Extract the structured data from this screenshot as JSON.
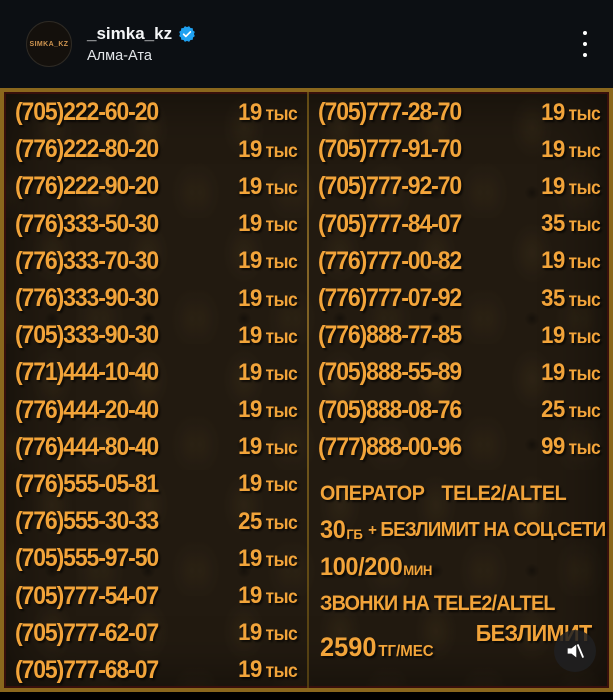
{
  "header": {
    "avatar_text": "SIMKA_KZ",
    "username": "_simka_kz",
    "location": "Алма-Ата"
  },
  "listing": {
    "left_column": [
      {
        "phone": "(705)222-60-20",
        "amount": "19",
        "unit": "тыс"
      },
      {
        "phone": "(776)222-80-20",
        "amount": "19",
        "unit": "тыс"
      },
      {
        "phone": "(776)222-90-20",
        "amount": "19",
        "unit": "тыс"
      },
      {
        "phone": "(776)333-50-30",
        "amount": "19",
        "unit": "тыс"
      },
      {
        "phone": "(776)333-70-30",
        "amount": "19",
        "unit": "тыс"
      },
      {
        "phone": "(776)333-90-30",
        "amount": "19",
        "unit": "тыс"
      },
      {
        "phone": "(705)333-90-30",
        "amount": "19",
        "unit": "тыс"
      },
      {
        "phone": "(771)444-10-40",
        "amount": "19",
        "unit": "тыс"
      },
      {
        "phone": "(776)444-20-40",
        "amount": "19",
        "unit": "тыс"
      },
      {
        "phone": "(776)444-80-40",
        "amount": "19",
        "unit": "тыс"
      },
      {
        "phone": "(776)555-05-81",
        "amount": "19",
        "unit": "тыс"
      },
      {
        "phone": "(776)555-30-33",
        "amount": "25",
        "unit": "тыс"
      },
      {
        "phone": "(705)555-97-50",
        "amount": "19",
        "unit": "тыс"
      },
      {
        "phone": "(705)777-54-07",
        "amount": "19",
        "unit": "тыс"
      },
      {
        "phone": "(705)777-62-07",
        "amount": "19",
        "unit": "тыс"
      },
      {
        "phone": "(705)777-68-07",
        "amount": "19",
        "unit": "тыс"
      }
    ],
    "right_column": [
      {
        "phone": "(705)777-28-70",
        "amount": "19",
        "unit": "тыс"
      },
      {
        "phone": "(705)777-91-70",
        "amount": "19",
        "unit": "тыс"
      },
      {
        "phone": "(705)777-92-70",
        "amount": "19",
        "unit": "тыс"
      },
      {
        "phone": "(705)777-84-07",
        "amount": "35",
        "unit": "тыс"
      },
      {
        "phone": "(776)777-00-82",
        "amount": "19",
        "unit": "тыс"
      },
      {
        "phone": "(776)777-07-92",
        "amount": "35",
        "unit": "тыс"
      },
      {
        "phone": "(776)888-77-85",
        "amount": "19",
        "unit": "тыс"
      },
      {
        "phone": "(705)888-55-89",
        "amount": "19",
        "unit": "тыс"
      },
      {
        "phone": "(705)888-08-76",
        "amount": "25",
        "unit": "тыс"
      },
      {
        "phone": "(777)888-00-96",
        "amount": "99",
        "unit": "тыс"
      }
    ]
  },
  "tariff": {
    "operator_label": "ОПЕРАТОР",
    "operator_value": "TELE2/ALTEL",
    "data_amount": "30",
    "data_unit": "ГБ",
    "data_plus": "+",
    "data_text": "БЕЗЛИМИТ НА СОЦ.СЕТИ",
    "minutes_value": "100/200",
    "minutes_unit": "МИН",
    "calls_text": "ЗВОНКИ НА TELE2/ALTEL",
    "price_value": "2590",
    "price_unit": "ТГ/МЕС",
    "unlimited_label": "БЕЗЛИМИТ"
  },
  "colors": {
    "gold": "#f2a43a",
    "frame": "#8a671d",
    "image_background": "#221a10",
    "header_background": "#0c0f13",
    "badge_blue": "#1fa1f1"
  }
}
